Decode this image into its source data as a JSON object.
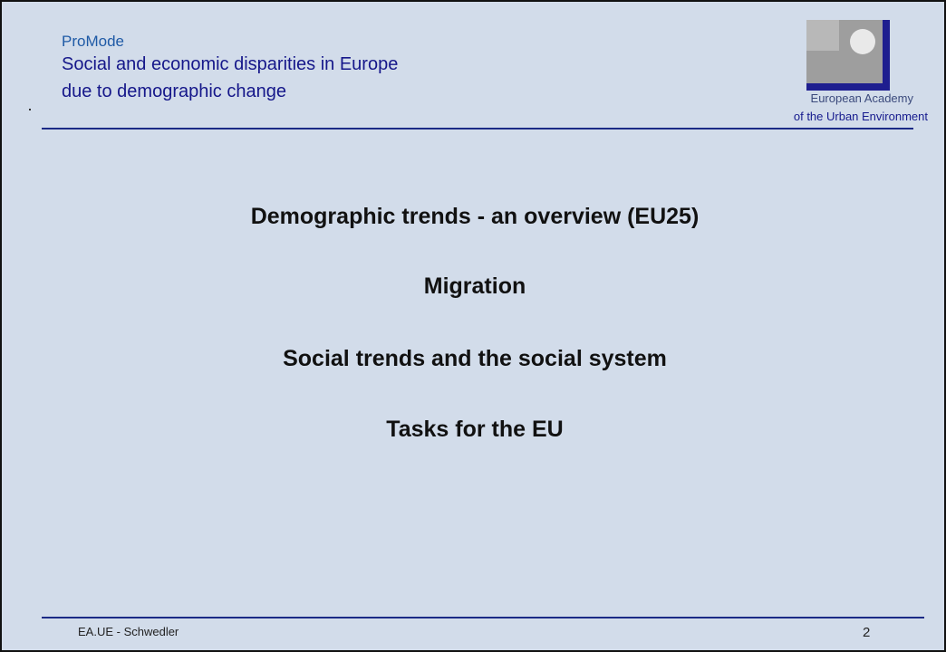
{
  "header": {
    "project": "ProMode",
    "title_line_1": "Social and economic disparities in Europe",
    "title_line_2": "due to demographic change"
  },
  "organization": {
    "line_1": "European Academy",
    "line_2": "of the Urban Environment",
    "logo_icon": "ea-ue-logo"
  },
  "agenda": [
    "Demographic trends - an overview (EU25)",
    "Migration",
    "Social trends and the social system",
    "Tasks for the EU"
  ],
  "footer": {
    "author": "EA.UE - Schwedler",
    "page_number": "2"
  },
  "colors": {
    "background": "#d2dcea",
    "rule": "#1b2a86",
    "title": "#15178a",
    "project": "#1f5aa6"
  }
}
